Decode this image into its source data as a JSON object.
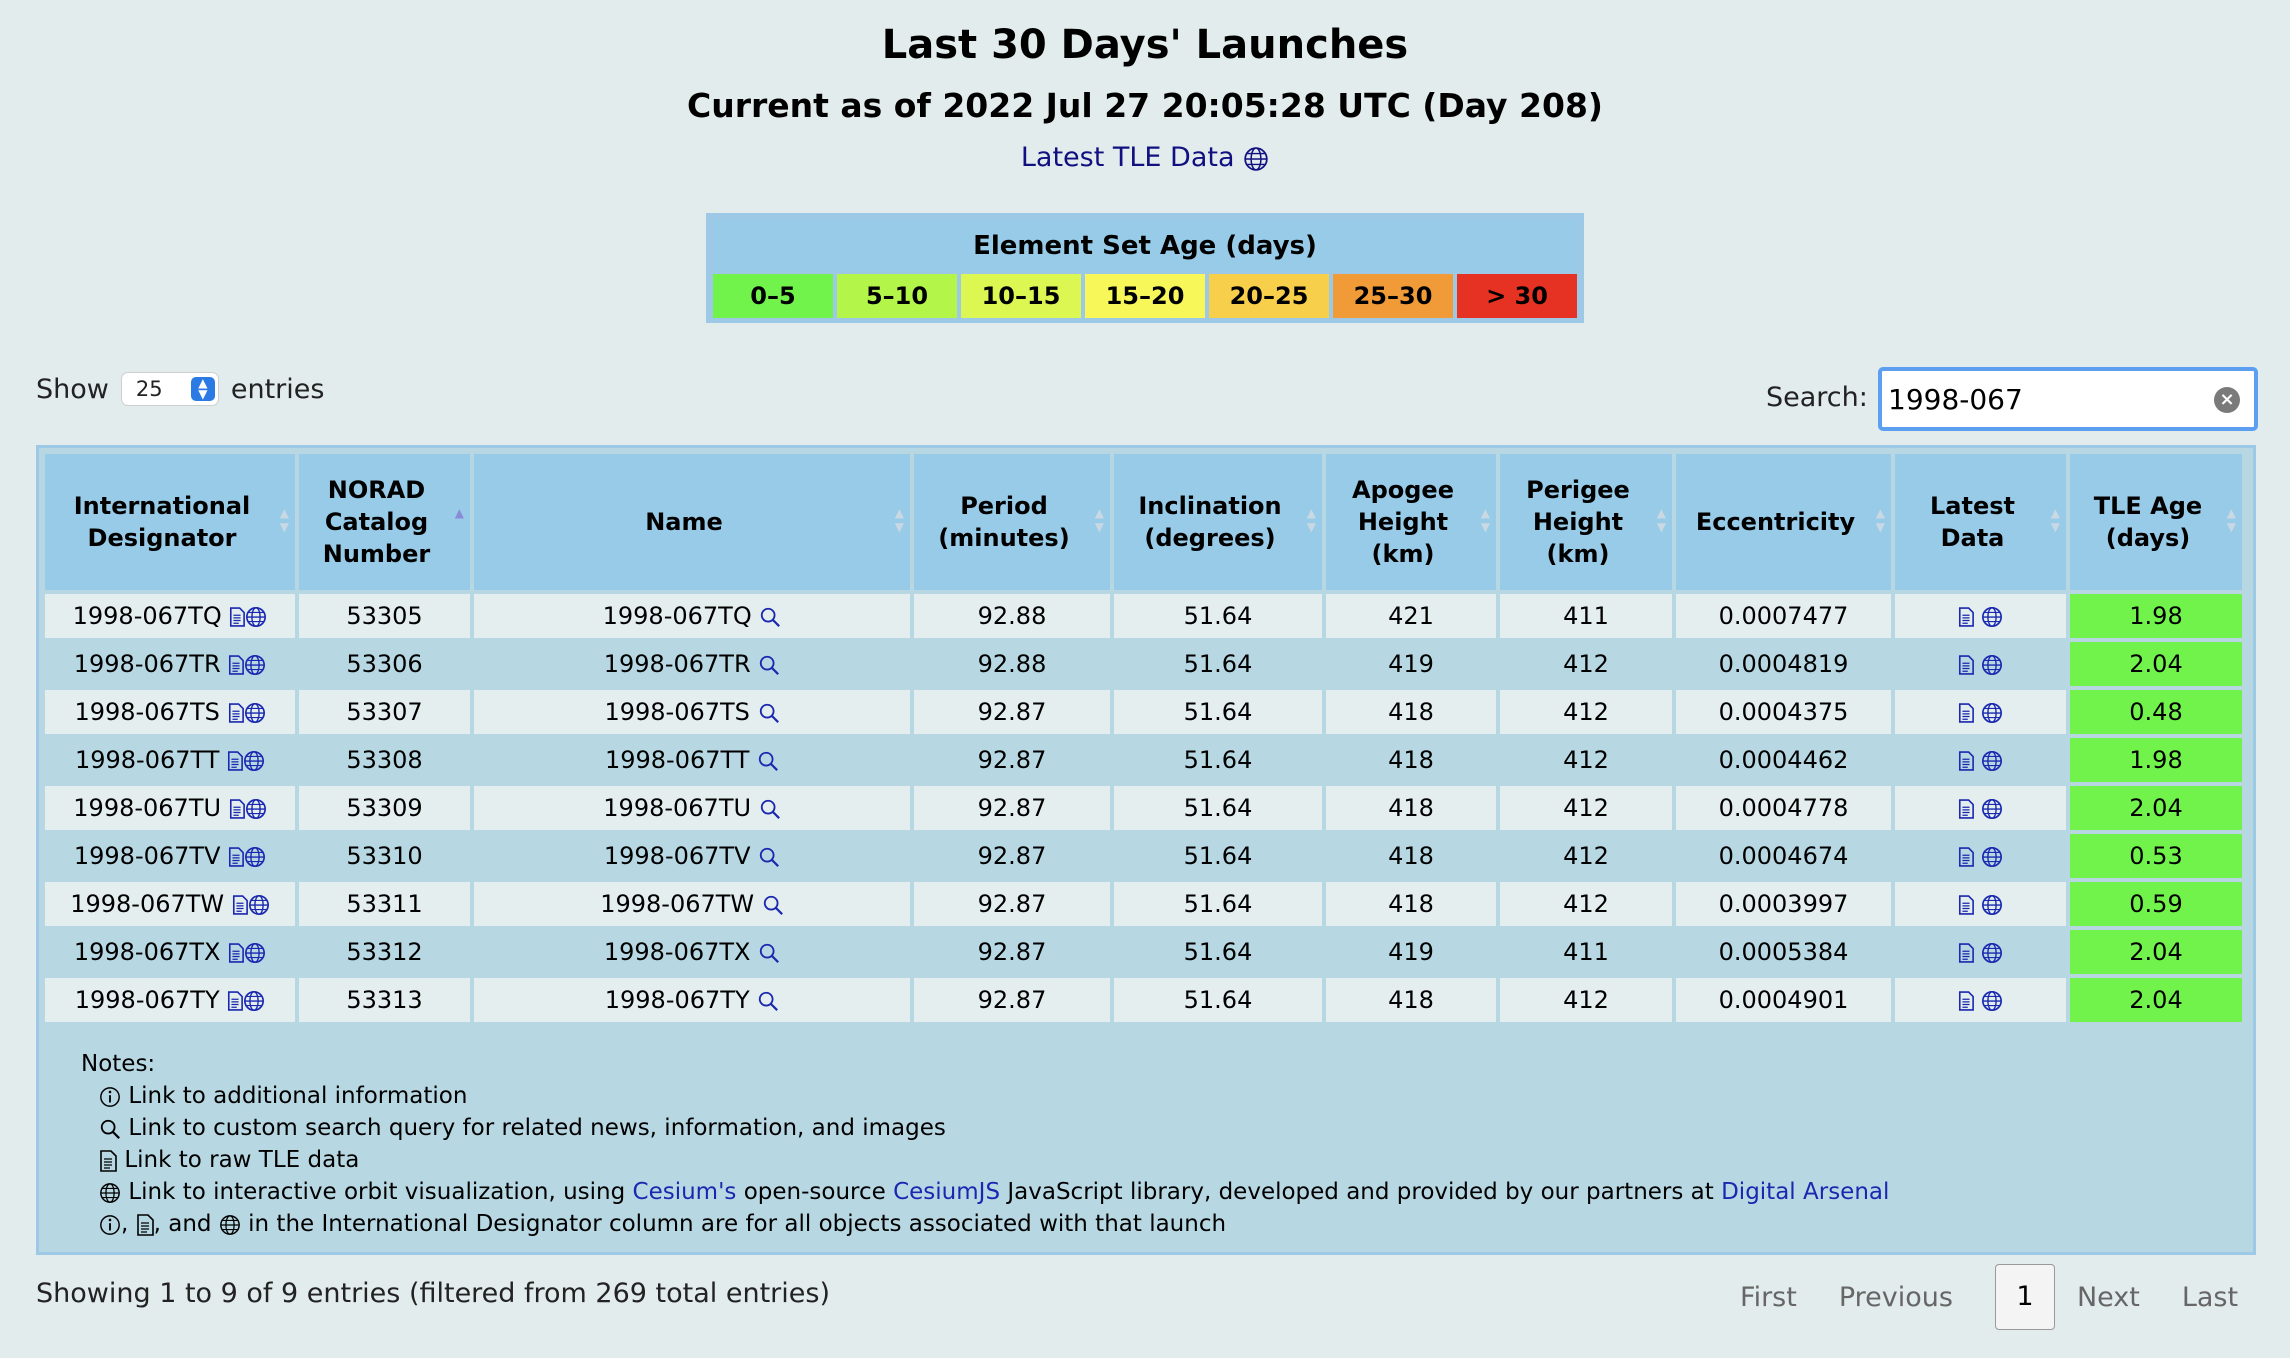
{
  "header": {
    "title": "Last 30 Days' Launches",
    "subtitle": "Current as of 2022 Jul 27 20:05:28 UTC (Day 208)",
    "tle_link": "Latest TLE Data"
  },
  "legend": {
    "title": "Element Set Age (days)",
    "items": [
      {
        "label": "0–5",
        "color": "#72f34c"
      },
      {
        "label": "5–10",
        "color": "#b4f54a"
      },
      {
        "label": "10–15",
        "color": "#dcf751"
      },
      {
        "label": "15–20",
        "color": "#f7f75a"
      },
      {
        "label": "20–25",
        "color": "#f8cf4a"
      },
      {
        "label": "25–30",
        "color": "#f09a38"
      },
      {
        "label": "> 30",
        "color": "#e63222"
      }
    ]
  },
  "controls": {
    "show_label": "Show",
    "entries_value": "25",
    "entries_label": "entries",
    "search_label": "Search:",
    "search_value": "1998-067"
  },
  "table": {
    "headers": {
      "designator": [
        "International",
        "Designator"
      ],
      "norad": [
        "NORAD",
        "Catalog",
        "Number"
      ],
      "name": [
        "Name"
      ],
      "period": [
        "Period",
        "(minutes)"
      ],
      "inclination": [
        "Inclination",
        "(degrees)"
      ],
      "apogee": [
        "Apogee",
        "Height",
        "(km)"
      ],
      "perigee": [
        "Perigee",
        "Height",
        "(km)"
      ],
      "eccentricity": [
        "Eccentricity"
      ],
      "latest": [
        "Latest",
        "Data"
      ],
      "age": [
        "TLE Age",
        "(days)"
      ]
    },
    "rows": [
      {
        "designator": "1998-067TQ",
        "norad": "53305",
        "name": "1998-067TQ",
        "period": "92.88",
        "inclination": "51.64",
        "apogee": "421",
        "perigee": "411",
        "eccentricity": "0.0007477",
        "age": "1.98"
      },
      {
        "designator": "1998-067TR",
        "norad": "53306",
        "name": "1998-067TR",
        "period": "92.88",
        "inclination": "51.64",
        "apogee": "419",
        "perigee": "412",
        "eccentricity": "0.0004819",
        "age": "2.04"
      },
      {
        "designator": "1998-067TS",
        "norad": "53307",
        "name": "1998-067TS",
        "period": "92.87",
        "inclination": "51.64",
        "apogee": "418",
        "perigee": "412",
        "eccentricity": "0.0004375",
        "age": "0.48"
      },
      {
        "designator": "1998-067TT",
        "norad": "53308",
        "name": "1998-067TT",
        "period": "92.87",
        "inclination": "51.64",
        "apogee": "418",
        "perigee": "412",
        "eccentricity": "0.0004462",
        "age": "1.98"
      },
      {
        "designator": "1998-067TU",
        "norad": "53309",
        "name": "1998-067TU",
        "period": "92.87",
        "inclination": "51.64",
        "apogee": "418",
        "perigee": "412",
        "eccentricity": "0.0004778",
        "age": "2.04"
      },
      {
        "designator": "1998-067TV",
        "norad": "53310",
        "name": "1998-067TV",
        "period": "92.87",
        "inclination": "51.64",
        "apogee": "418",
        "perigee": "412",
        "eccentricity": "0.0004674",
        "age": "0.53"
      },
      {
        "designator": "1998-067TW",
        "norad": "53311",
        "name": "1998-067TW",
        "period": "92.87",
        "inclination": "51.64",
        "apogee": "418",
        "perigee": "412",
        "eccentricity": "0.0003997",
        "age": "0.59"
      },
      {
        "designator": "1998-067TX",
        "norad": "53312",
        "name": "1998-067TX",
        "period": "92.87",
        "inclination": "51.64",
        "apogee": "419",
        "perigee": "411",
        "eccentricity": "0.0005384",
        "age": "2.04"
      },
      {
        "designator": "1998-067TY",
        "norad": "53313",
        "name": "1998-067TY",
        "period": "92.87",
        "inclination": "51.64",
        "apogee": "418",
        "perigee": "412",
        "eccentricity": "0.0004901",
        "age": "2.04"
      }
    ]
  },
  "notes": {
    "title": "Notes:",
    "info": "Link to additional information",
    "search": "Link to custom search query for related news, information, and images",
    "raw": "Link to raw TLE data",
    "viz_pre": "Link to interactive orbit visualization, using",
    "viz_cesium": "Cesium's",
    "viz_mid1": "open-source",
    "viz_cesiumjs": "CesiumJS",
    "viz_mid2": "JavaScript library, developed and provided by our partners at",
    "viz_da": "Digital Arsenal",
    "designator_sep1": ",",
    "designator_sep2": ", and",
    "designator_note": "in the International Designator column are for all objects associated with that launch"
  },
  "footer": {
    "status": "Showing 1 to 9 of 9 entries (filtered from 269 total entries)",
    "first": "First",
    "previous": "Previous",
    "page": "1",
    "next": "Next",
    "last": "Last"
  },
  "icons": {
    "doc": "document-icon",
    "globe": "globe-icon",
    "search": "magnifier-icon",
    "info": "info-icon",
    "link_color": "#1a28b0"
  }
}
